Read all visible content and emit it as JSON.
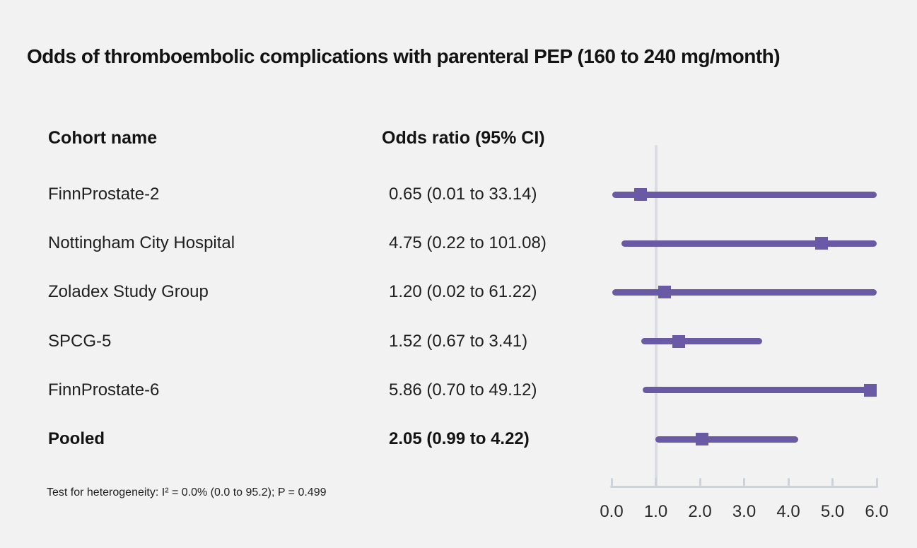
{
  "title": "Odds of thromboembolic complications with parenteral PEP (160 to 240 mg/month)",
  "columns": {
    "cohort": "Cohort name",
    "odds": "Odds ratio (95% CI)"
  },
  "footnote": "Test for heterogeneity: I² = 0.0% (0.0 to 95.2); P = 0.499",
  "colors": {
    "background": "#f2f2f3",
    "marker_purple": "#6a5aa5",
    "reference_line": "#d9dce3",
    "axis": "#ccd3db",
    "text": "#1c1c1c"
  },
  "chart_data": {
    "type": "forest",
    "title": "Odds of thromboembolic complications with parenteral PEP (160 to 240 mg/month)",
    "xlabel": "",
    "ylabel": "",
    "xlim": [
      0.0,
      6.0
    ],
    "xticks": [
      "0.0",
      "1.0",
      "2.0",
      "3.0",
      "4.0",
      "5.0",
      "6.0"
    ],
    "reference_line": 1.0,
    "grid": false,
    "legend": false,
    "rows": [
      {
        "cohort": "FinnProstate-2",
        "or": 0.65,
        "ci_low": 0.01,
        "ci_high": 33.14,
        "or_label": "0.65 (0.01 to 33.14)",
        "bold": false
      },
      {
        "cohort": "Nottingham City Hospital",
        "or": 4.75,
        "ci_low": 0.22,
        "ci_high": 101.08,
        "or_label": "4.75 (0.22 to 101.08)",
        "bold": false
      },
      {
        "cohort": "Zoladex Study Group",
        "or": 1.2,
        "ci_low": 0.02,
        "ci_high": 61.22,
        "or_label": "1.20 (0.02 to 61.22)",
        "bold": false
      },
      {
        "cohort": "SPCG-5",
        "or": 1.52,
        "ci_low": 0.67,
        "ci_high": 3.41,
        "or_label": "1.52 (0.67 to 3.41)",
        "bold": false
      },
      {
        "cohort": "FinnProstate-6",
        "or": 5.86,
        "ci_low": 0.7,
        "ci_high": 49.12,
        "or_label": "5.86 (0.70 to 49.12)",
        "bold": false
      },
      {
        "cohort": "Pooled",
        "or": 2.05,
        "ci_low": 0.99,
        "ci_high": 4.22,
        "or_label": "2.05 (0.99 to 4.22)",
        "bold": true
      }
    ]
  }
}
